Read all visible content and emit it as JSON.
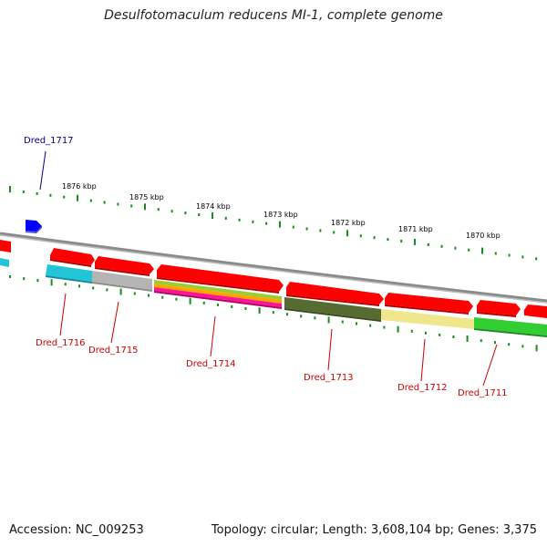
{
  "title": "Desulfotomaculum reducens MI-1, complete genome",
  "accession": "Accession: NC_009253",
  "topology": "Topology: circular; Length: 3,608,104 bp; Genes: 3,375",
  "colors": {
    "backbone": "#8a8a8a",
    "cds_forward": "#ff0000",
    "cds_reverse_query": "#0000ff",
    "ticks": "#1a8c1a",
    "label_forward": "#cc0000",
    "label_reverse": "#00008b"
  },
  "kbp_labels": [
    "1876 kbp",
    "1875 kbp",
    "1874 kbp",
    "1873 kbp",
    "1872 kbp",
    "1871 kbp",
    "1870 kbp"
  ],
  "genes": [
    {
      "label": "Dred_1717",
      "strand": "reverse",
      "color": "#0000ff"
    },
    {
      "label": "Dred_1716",
      "strand": "forward",
      "color": "#ff0000"
    },
    {
      "label": "Dred_1715",
      "strand": "forward",
      "color": "#ff0000"
    },
    {
      "label": "Dred_1714",
      "strand": "forward",
      "color": "#ff0000"
    },
    {
      "label": "Dred_1713",
      "strand": "forward",
      "color": "#ff0000"
    },
    {
      "label": "Dred_1712",
      "strand": "forward",
      "color": "#ff0000"
    },
    {
      "label": "Dred_1711",
      "strand": "forward",
      "color": "#ff0000"
    }
  ],
  "feature_tracks": [
    {
      "gene": "Dred_1716",
      "colors": [
        "#22c4d8"
      ]
    },
    {
      "gene": "Dred_1715",
      "colors": [
        "#b4b4b4"
      ]
    },
    {
      "gene": "Dred_1714",
      "colors": [
        "#9acd32",
        "#ffa500",
        "#ff1493"
      ]
    },
    {
      "gene": "Dred_1713",
      "colors": [
        "#556b2f"
      ]
    },
    {
      "gene": "Dred_1712",
      "colors": [
        "#f0e68c"
      ]
    },
    {
      "gene": "Dred_1711",
      "colors": [
        "#32cd32"
      ]
    }
  ]
}
